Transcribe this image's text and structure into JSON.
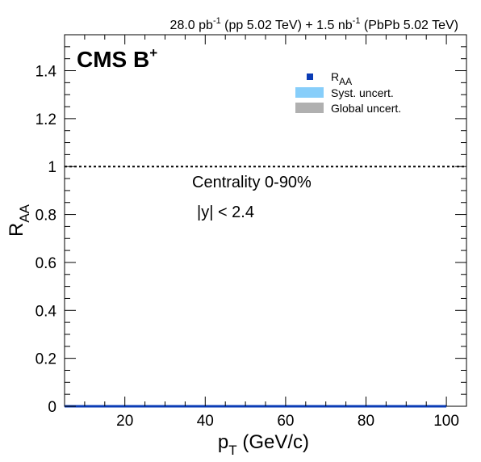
{
  "header": {
    "lumi_pp_value": "28.0 pb",
    "lumi_pp_exp": "-1",
    "lumi_pp_rest": " (pp 5.02 TeV) + 1.5 nb",
    "lumi_pbpb_exp": "-1",
    "lumi_pbpb_rest": " (PbPb 5.02 TeV)"
  },
  "cms_label": {
    "text": "CMS B",
    "superscript": "+"
  },
  "annotations": {
    "centrality": "Centrality 0-90%",
    "rapidity": "|y| < 2.4"
  },
  "legend": {
    "position": "top-right",
    "raa_main": "R",
    "raa_sub": "AA",
    "syst": "Syst. uncert.",
    "global": "Global uncert."
  },
  "colors": {
    "data_marker": "#0a3bb5",
    "syst_band": "#87cefa",
    "global_band": "#b0b0b0",
    "reference_line": "#000000"
  },
  "chart_data": {
    "type": "scatter",
    "title": "",
    "xlabel_main": "p",
    "xlabel_sub": "T",
    "xlabel_rest": " (GeV/c)",
    "ylabel_main": "R",
    "ylabel_sub": "AA",
    "xlim": [
      5,
      105
    ],
    "ylim": [
      0,
      1.55
    ],
    "x_ticks": [
      20,
      40,
      60,
      80,
      100
    ],
    "x_tick_labels": [
      "20",
      "40",
      "60",
      "80",
      "100"
    ],
    "y_ticks": [
      0,
      0.2,
      0.4,
      0.6,
      0.8,
      1,
      1.2,
      1.4
    ],
    "y_tick_labels": [
      "0",
      "0.2",
      "0.4",
      "0.6",
      "0.8",
      "1",
      "1.2",
      "1.4"
    ],
    "reference_line_y": 1,
    "data_band": {
      "x_start": 5,
      "x_end": 100,
      "y": 0
    },
    "grid": false
  }
}
